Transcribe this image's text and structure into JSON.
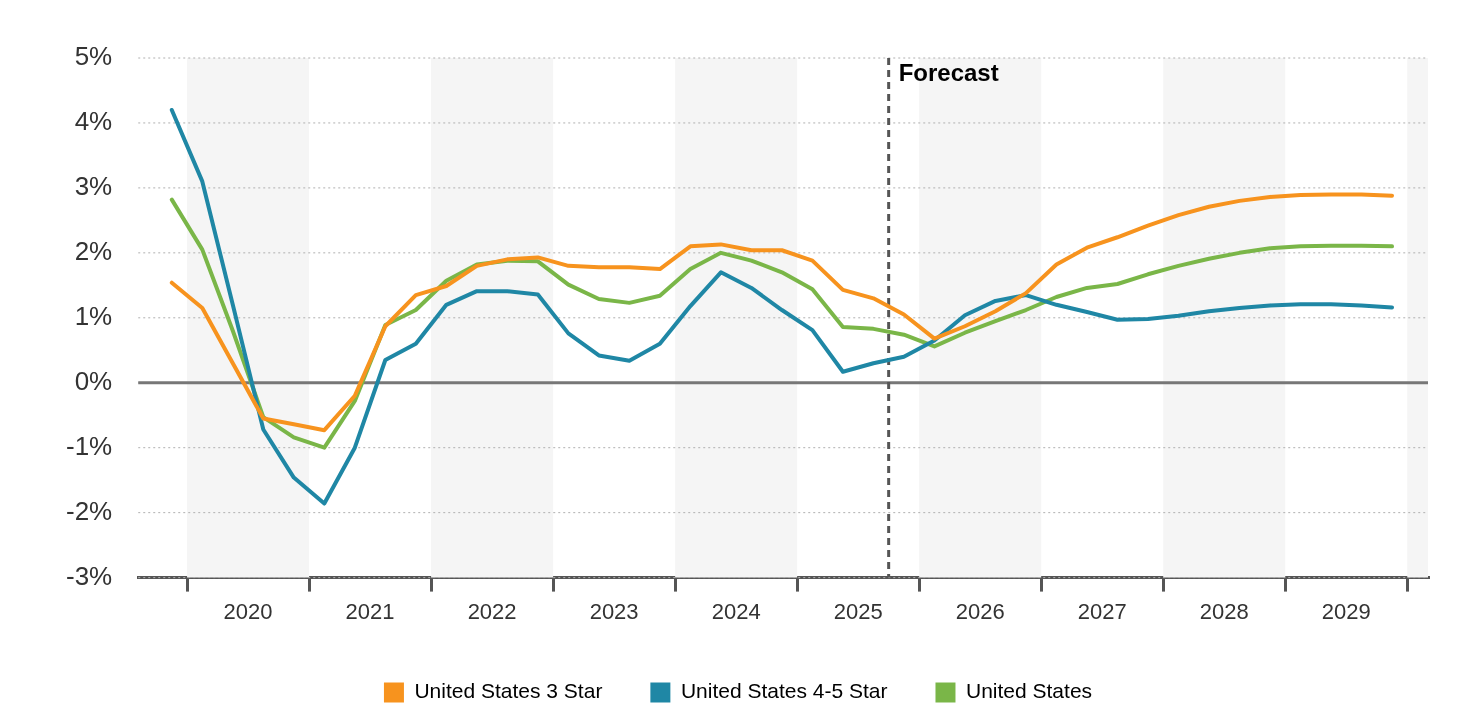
{
  "chart_data": {
    "type": "line",
    "x": [
      2019.875,
      2020.125,
      2020.375,
      2020.625,
      2020.875,
      2021.125,
      2021.375,
      2021.625,
      2021.875,
      2022.125,
      2022.375,
      2022.625,
      2022.875,
      2023.125,
      2023.375,
      2023.625,
      2023.875,
      2024.125,
      2024.375,
      2024.625,
      2024.875,
      2025.125,
      2025.375,
      2025.625,
      2025.875,
      2026.125,
      2026.375,
      2026.625,
      2026.875,
      2027.125,
      2027.375,
      2027.625,
      2027.875,
      2028.125,
      2028.375,
      2028.625,
      2028.875,
      2029.125,
      2029.375,
      2029.625,
      2029.875
    ],
    "series": [
      {
        "name": "United States 3 Star",
        "color": "#f7931e",
        "values": [
          1.54,
          1.15,
          0.3,
          -0.55,
          -0.64,
          -0.73,
          -0.2,
          0.87,
          1.35,
          1.49,
          1.8,
          1.9,
          1.93,
          1.8,
          1.78,
          1.78,
          1.75,
          2.1,
          2.13,
          2.04,
          2.04,
          1.88,
          1.43,
          1.3,
          1.05,
          0.68,
          0.87,
          1.1,
          1.38,
          1.82,
          2.08,
          2.24,
          2.42,
          2.58,
          2.71,
          2.8,
          2.86,
          2.89,
          2.9,
          2.9,
          2.88
        ]
      },
      {
        "name": "United States 4-5 Star",
        "color": "#1f87a5",
        "values": [
          4.2,
          3.1,
          1.2,
          -0.72,
          -1.46,
          -1.86,
          -1.0,
          0.35,
          0.6,
          1.2,
          1.41,
          1.41,
          1.36,
          0.76,
          0.42,
          0.34,
          0.6,
          1.18,
          1.7,
          1.46,
          1.12,
          0.81,
          0.17,
          0.3,
          0.4,
          0.65,
          1.04,
          1.26,
          1.35,
          1.2,
          1.09,
          0.97,
          0.98,
          1.03,
          1.1,
          1.15,
          1.19,
          1.21,
          1.21,
          1.19,
          1.16
        ]
      },
      {
        "name": "United States",
        "color": "#7ab648",
        "values": [
          2.82,
          2.05,
          0.8,
          -0.53,
          -0.84,
          -1.0,
          -0.28,
          0.89,
          1.12,
          1.57,
          1.82,
          1.88,
          1.87,
          1.51,
          1.29,
          1.23,
          1.34,
          1.75,
          2.0,
          1.88,
          1.7,
          1.44,
          0.86,
          0.83,
          0.74,
          0.56,
          0.77,
          0.95,
          1.12,
          1.32,
          1.46,
          1.52,
          1.67,
          1.8,
          1.91,
          2.0,
          2.07,
          2.1,
          2.11,
          2.11,
          2.1
        ]
      }
    ],
    "xlim": [
      2019.6,
      2030.17
    ],
    "xticks": [
      {
        "value": 2020,
        "label": null
      },
      {
        "value": 2020.5,
        "label": "2020"
      },
      {
        "value": 2021,
        "label": null
      },
      {
        "value": 2021.5,
        "label": "2021"
      },
      {
        "value": 2022,
        "label": null
      },
      {
        "value": 2022.5,
        "label": "2022"
      },
      {
        "value": 2023,
        "label": null
      },
      {
        "value": 2023.5,
        "label": "2023"
      },
      {
        "value": 2024,
        "label": null
      },
      {
        "value": 2024.5,
        "label": "2024"
      },
      {
        "value": 2025,
        "label": null
      },
      {
        "value": 2025.5,
        "label": "2025"
      },
      {
        "value": 2026,
        "label": null
      },
      {
        "value": 2026.5,
        "label": "2026"
      },
      {
        "value": 2027,
        "label": null
      },
      {
        "value": 2027.5,
        "label": "2027"
      },
      {
        "value": 2028,
        "label": null
      },
      {
        "value": 2028.5,
        "label": "2028"
      },
      {
        "value": 2029,
        "label": null
      },
      {
        "value": 2029.5,
        "label": "2029"
      },
      {
        "value": 2030,
        "label": null
      }
    ],
    "ylim": [
      -3,
      5
    ],
    "yticks": [
      {
        "value": -3,
        "label": "-3%"
      },
      {
        "value": -2,
        "label": "-2%"
      },
      {
        "value": -1,
        "label": "-1%"
      },
      {
        "value": 0,
        "label": "0%"
      },
      {
        "value": 1,
        "label": "1%"
      },
      {
        "value": 2,
        "label": "2%"
      },
      {
        "value": 3,
        "label": "3%"
      },
      {
        "value": 4,
        "label": "4%"
      },
      {
        "value": 5,
        "label": "5%"
      }
    ],
    "grid": "y",
    "legend": "bottom",
    "marker": "none",
    "line_style": "solid",
    "bands": [
      {
        "axis": "x",
        "from": 2020,
        "to": 2021,
        "color": "#f5f5f5"
      },
      {
        "axis": "x",
        "from": 2022,
        "to": 2023,
        "color": "#f5f5f5"
      },
      {
        "axis": "x",
        "from": 2024,
        "to": 2025,
        "color": "#f5f5f5"
      },
      {
        "axis": "x",
        "from": 2026,
        "to": 2027,
        "color": "#f5f5f5"
      },
      {
        "axis": "x",
        "from": 2028,
        "to": 2029,
        "color": "#f5f5f5"
      },
      {
        "axis": "x",
        "from": 2030,
        "to": 2030.17,
        "color": "#f5f5f5"
      }
    ],
    "ref_lines": [
      {
        "axis": "y",
        "value": 0,
        "color": "#777777",
        "line_style": "solid"
      },
      {
        "axis": "x",
        "value": 2025.75,
        "label": "Forecast",
        "color": "#555555",
        "line_style": "dashed"
      }
    ]
  }
}
